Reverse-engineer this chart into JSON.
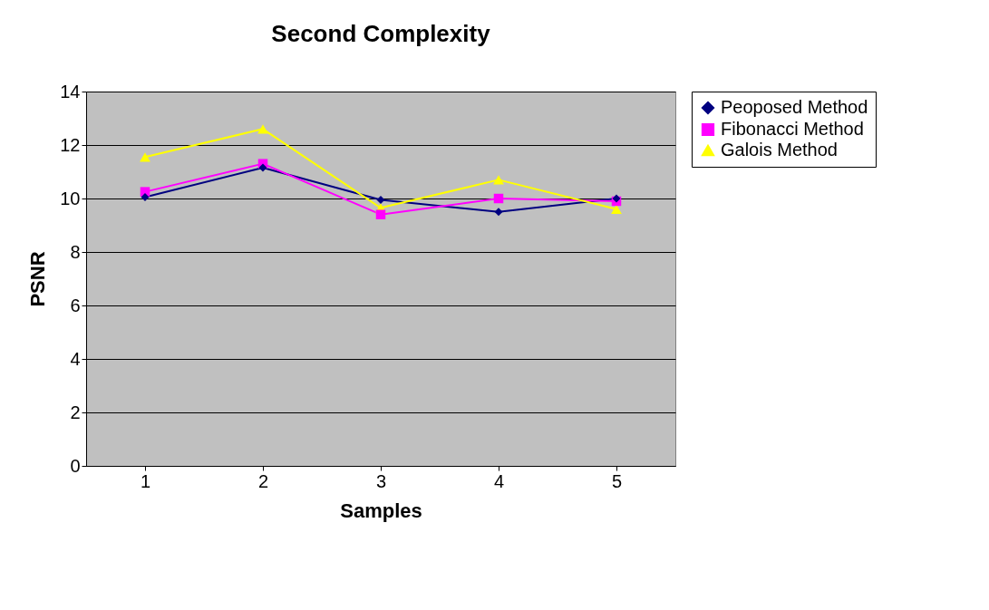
{
  "chart_data": {
    "type": "line",
    "title": "Second Complexity",
    "xlabel": "Samples",
    "ylabel": "PSNR",
    "categories": [
      "1",
      "2",
      "3",
      "4",
      "5"
    ],
    "series": [
      {
        "name": "Peoposed Method",
        "color": "#000080",
        "marker": "diamond",
        "values": [
          10.05,
          11.15,
          9.95,
          9.5,
          10.0
        ]
      },
      {
        "name": "Fibonacci Method",
        "color": "#ff00ff",
        "marker": "square",
        "values": [
          10.25,
          11.3,
          9.4,
          10.0,
          9.9
        ]
      },
      {
        "name": "Galois Method",
        "color": "#ffff00",
        "marker": "triangle",
        "values": [
          11.55,
          12.6,
          9.65,
          10.7,
          9.6
        ]
      }
    ],
    "ylim": [
      0,
      14
    ],
    "yticks": [
      0,
      2,
      4,
      6,
      8,
      10,
      12,
      14
    ],
    "grid": "y",
    "legend": "right"
  }
}
